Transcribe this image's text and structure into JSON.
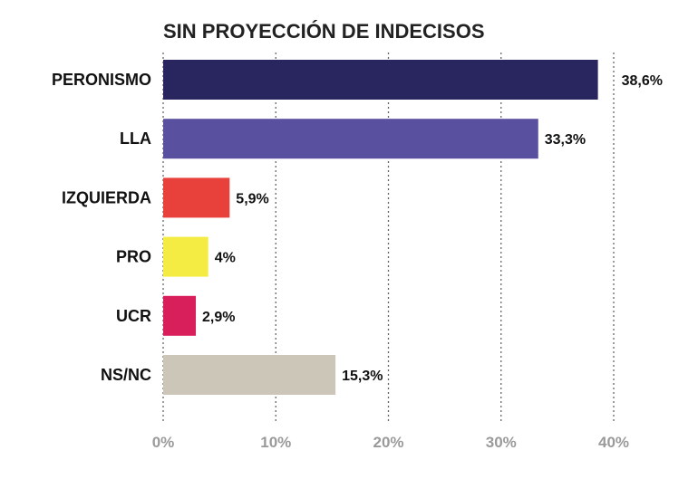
{
  "chart_data": {
    "type": "bar",
    "orientation": "horizontal",
    "title": "SIN PROYECCIÓN DE INDECISOS",
    "categories": [
      "PERONISMO",
      "LLA",
      "IZQUIERDA",
      "PRO",
      "UCR",
      "NS/NC"
    ],
    "values": [
      38.6,
      33.3,
      5.9,
      4,
      2.9,
      15.3
    ],
    "value_labels": [
      "38,6%",
      "33,3%",
      "5,9%",
      "4%",
      "2,9%",
      "15,3%"
    ],
    "colors": [
      "#29265f",
      "#5a50a0",
      "#e8403a",
      "#f4ec43",
      "#d81e5b",
      "#cbc6b8"
    ],
    "xlim": [
      0,
      40
    ],
    "ticks": [
      0,
      10,
      20,
      30,
      40
    ],
    "tick_labels": [
      "0%",
      "10%",
      "20%",
      "30%",
      "40%"
    ],
    "grid": true,
    "legend": "none"
  }
}
